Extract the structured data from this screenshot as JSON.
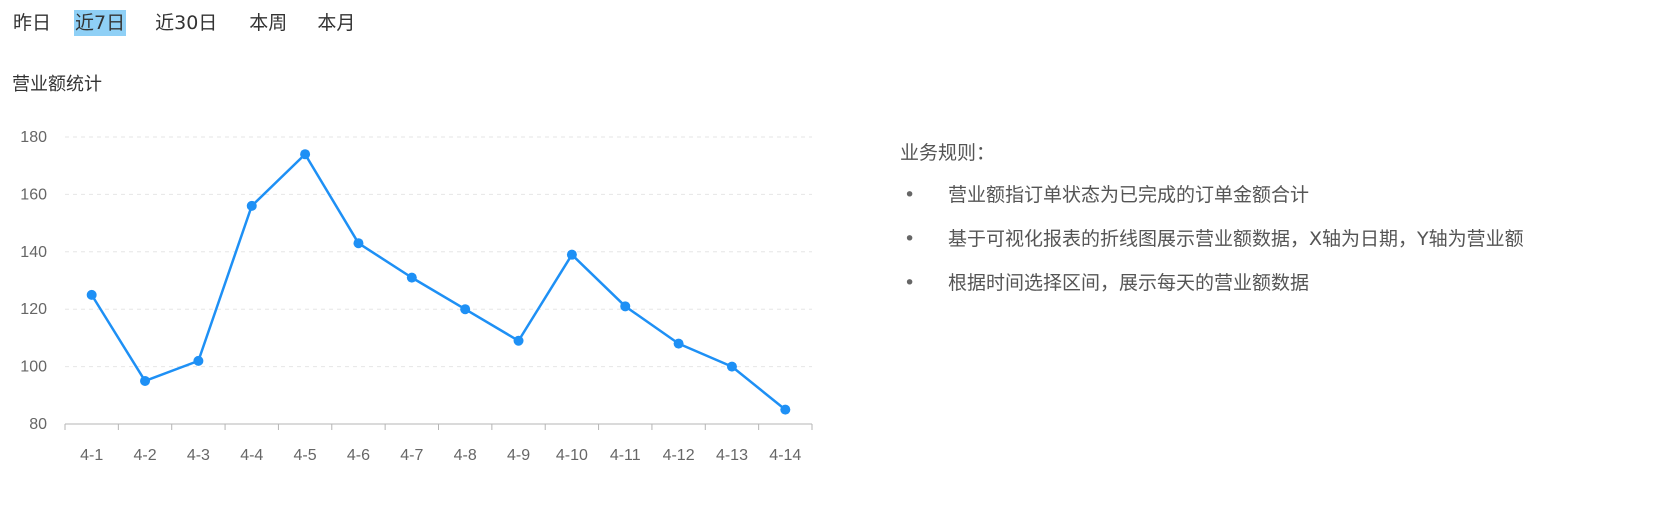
{
  "filters": {
    "items": [
      {
        "label": "昨日",
        "active": false
      },
      {
        "label": "近7日",
        "active": true
      },
      {
        "label": "近30日",
        "active": false
      },
      {
        "label": "本周",
        "active": false
      },
      {
        "label": "本月",
        "active": false
      }
    ]
  },
  "section": {
    "title": "营业额统计"
  },
  "chart_data": {
    "type": "line",
    "title": "",
    "xlabel": "",
    "ylabel": "",
    "categories": [
      "4-1",
      "4-2",
      "4-3",
      "4-4",
      "4-5",
      "4-6",
      "4-7",
      "4-8",
      "4-9",
      "4-10",
      "4-11",
      "4-12",
      "4-13",
      "4-14"
    ],
    "series": [
      {
        "values": [
          125,
          95,
          102,
          156,
          174,
          143,
          131,
          120,
          109,
          139,
          121,
          108,
          100,
          85
        ]
      }
    ],
    "ylim": [
      80,
      180
    ],
    "yticks": [
      80,
      100,
      120,
      140,
      160,
      180
    ],
    "grid": true,
    "line_color": "#1e90f5"
  },
  "rules": {
    "title": "业务规则：",
    "items": [
      "营业额指订单状态为已完成的订单金额合计",
      "基于可视化报表的折线图展示营业额数据，X轴为日期，Y轴为营业额",
      "根据时间选择区间，展示每天的营业额数据"
    ],
    "bullet": "•"
  }
}
